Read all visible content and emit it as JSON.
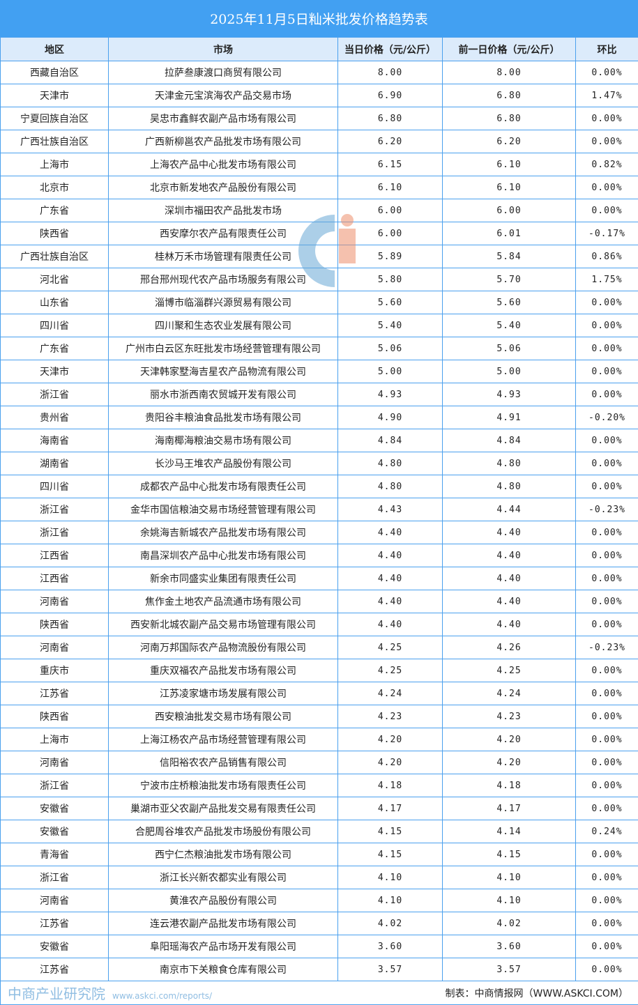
{
  "title": "2025年11月5日籼米批发价格趋势表",
  "columns": [
    "地区",
    "市场",
    "当日价格（元/公斤）",
    "前一日价格（元/公斤）",
    "环比"
  ],
  "rows": [
    [
      "西藏自治区",
      "拉萨叁康渡口商贸有限公司",
      "8.00",
      "8.00",
      "0.00%"
    ],
    [
      "天津市",
      "天津金元宝滨海农产品交易市场",
      "6.90",
      "6.80",
      "1.47%"
    ],
    [
      "宁夏回族自治区",
      "吴忠市鑫鲜农副产品市场有限公司",
      "6.80",
      "6.80",
      "0.00%"
    ],
    [
      "广西壮族自治区",
      "广西新柳邕农产品批发市场有限公司",
      "6.20",
      "6.20",
      "0.00%"
    ],
    [
      "上海市",
      "上海农产品中心批发市场有限公司",
      "6.15",
      "6.10",
      "0.82%"
    ],
    [
      "北京市",
      "北京市新发地农产品股份有限公司",
      "6.10",
      "6.10",
      "0.00%"
    ],
    [
      "广东省",
      "深圳市福田农产品批发市场",
      "6.00",
      "6.00",
      "0.00%"
    ],
    [
      "陕西省",
      "西安摩尔农产品有限责任公司",
      "6.00",
      "6.01",
      "-0.17%"
    ],
    [
      "广西壮族自治区",
      "桂林万禾市场管理有限责任公司",
      "5.89",
      "5.84",
      "0.86%"
    ],
    [
      "河北省",
      "邢台邢州现代农产品市场服务有限公司",
      "5.80",
      "5.70",
      "1.75%"
    ],
    [
      "山东省",
      "淄博市临淄群兴源贸易有限公司",
      "5.60",
      "5.60",
      "0.00%"
    ],
    [
      "四川省",
      "四川聚和生态农业发展有限公司",
      "5.40",
      "5.40",
      "0.00%"
    ],
    [
      "广东省",
      "广州市白云区东旺批发市场经营管理有限公司",
      "5.06",
      "5.06",
      "0.00%"
    ],
    [
      "天津市",
      "天津韩家墅海吉星农产品物流有限公司",
      "5.00",
      "5.00",
      "0.00%"
    ],
    [
      "浙江省",
      "丽水市浙西南农贸城开发有限公司",
      "4.93",
      "4.93",
      "0.00%"
    ],
    [
      "贵州省",
      "贵阳谷丰粮油食品批发市场有限公司",
      "4.90",
      "4.91",
      "-0.20%"
    ],
    [
      "海南省",
      "海南椰海粮油交易市场有限公司",
      "4.84",
      "4.84",
      "0.00%"
    ],
    [
      "湖南省",
      "长沙马王堆农产品股份有限公司",
      "4.80",
      "4.80",
      "0.00%"
    ],
    [
      "四川省",
      "成都农产品中心批发市场有限责任公司",
      "4.80",
      "4.80",
      "0.00%"
    ],
    [
      "浙江省",
      "金华市国信粮油交易市场经营管理有限公司",
      "4.43",
      "4.44",
      "-0.23%"
    ],
    [
      "浙江省",
      "余姚海吉新城农产品批发市场有限公司",
      "4.40",
      "4.40",
      "0.00%"
    ],
    [
      "江西省",
      "南昌深圳农产品中心批发市场有限公司",
      "4.40",
      "4.40",
      "0.00%"
    ],
    [
      "江西省",
      "新余市同盛实业集团有限责任公司",
      "4.40",
      "4.40",
      "0.00%"
    ],
    [
      "河南省",
      "焦作金土地农产品流通市场有限公司",
      "4.40",
      "4.40",
      "0.00%"
    ],
    [
      "陕西省",
      "西安新北城农副产品交易市场管理有限公司",
      "4.40",
      "4.40",
      "0.00%"
    ],
    [
      "河南省",
      "河南万邦国际农产品物流股份有限公司",
      "4.25",
      "4.26",
      "-0.23%"
    ],
    [
      "重庆市",
      "重庆双福农产品批发市场有限公司",
      "4.25",
      "4.25",
      "0.00%"
    ],
    [
      "江苏省",
      "江苏凌家塘市场发展有限公司",
      "4.24",
      "4.24",
      "0.00%"
    ],
    [
      "陕西省",
      "西安粮油批发交易市场有限公司",
      "4.23",
      "4.23",
      "0.00%"
    ],
    [
      "上海市",
      "上海江杨农产品市场经营管理有限公司",
      "4.20",
      "4.20",
      "0.00%"
    ],
    [
      "河南省",
      "信阳裕农农产品销售有限公司",
      "4.20",
      "4.20",
      "0.00%"
    ],
    [
      "浙江省",
      "宁波市庄桥粮油批发市场有限责任公司",
      "4.18",
      "4.18",
      "0.00%"
    ],
    [
      "安徽省",
      "巢湖市亚父农副产品批发交易有限责任公司",
      "4.17",
      "4.17",
      "0.00%"
    ],
    [
      "安徽省",
      "合肥周谷堆农产品批发市场股份有限公司",
      "4.15",
      "4.14",
      "0.24%"
    ],
    [
      "青海省",
      "西宁仁杰粮油批发市场有限公司",
      "4.15",
      "4.15",
      "0.00%"
    ],
    [
      "浙江省",
      "浙江长兴新农都实业有限公司",
      "4.10",
      "4.10",
      "0.00%"
    ],
    [
      "河南省",
      "黄淮农产品股份有限公司",
      "4.10",
      "4.10",
      "0.00%"
    ],
    [
      "江苏省",
      "连云港农副产品批发市场有限公司",
      "4.02",
      "4.02",
      "0.00%"
    ],
    [
      "安徽省",
      "阜阳瑶海农产品市场开发有限公司",
      "3.60",
      "3.60",
      "0.00%"
    ],
    [
      "江苏省",
      "南京市下关粮食仓库有限公司",
      "3.57",
      "3.57",
      "0.00%"
    ]
  ],
  "footer": "制表：中商情报网（WWW.ASKCI.COM）",
  "watermark": {
    "name": "中商产业研究院",
    "url": "www.askci.com/reports/"
  },
  "colors": {
    "title_bg": "#42a0f2",
    "header_bg": "#dcebfb",
    "border": "#4aa0ee"
  }
}
